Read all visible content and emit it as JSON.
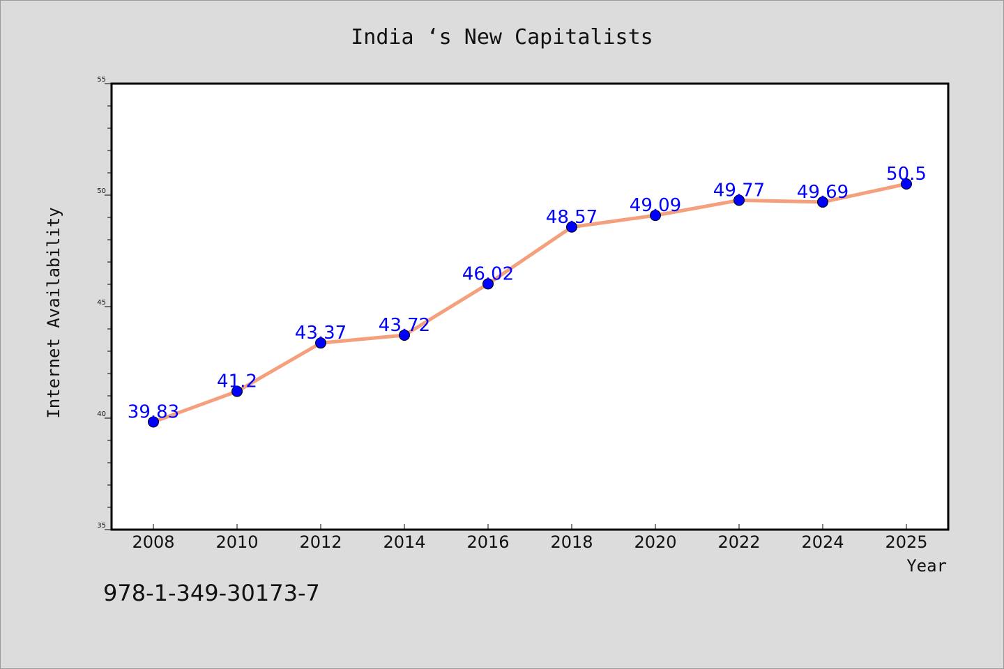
{
  "chart_data": {
    "type": "line",
    "title": "India ‘s New Capitalists",
    "xlabel": "Year",
    "ylabel": "Internet Availability",
    "categories": [
      "2008",
      "2010",
      "2012",
      "2014",
      "2016",
      "2018",
      "2020",
      "2022",
      "2024",
      "2025"
    ],
    "series": [
      {
        "values": [
          39.83,
          41.2,
          43.37,
          43.72,
          46.02,
          48.57,
          49.09,
          49.77,
          49.69,
          50.5
        ],
        "data_labels": [
          "39.83",
          "41.2",
          "43.37",
          "43.72",
          "46.02",
          "48.57",
          "49.09",
          "49.77",
          "49.69",
          "50.5"
        ],
        "line_color": "#f4a07c",
        "marker_color": "#0000ff"
      }
    ],
    "ylim": [
      35,
      55
    ],
    "yticks": [
      "35",
      "40",
      "45",
      "50",
      "55"
    ],
    "grid": false,
    "legend": "none"
  },
  "footer": {
    "isbn": "978-1-349-30173-7"
  }
}
